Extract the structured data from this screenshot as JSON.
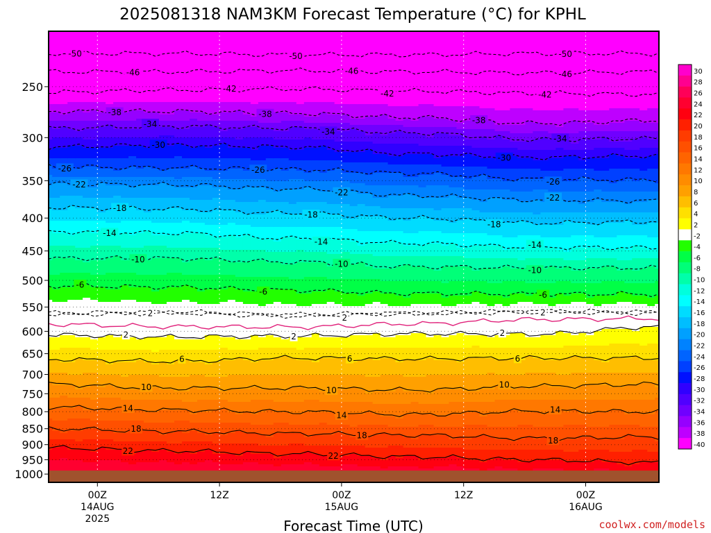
{
  "chart_data": {
    "type": "heatmap",
    "title": "2025081318 NAM3KM Forecast Temperature (°C) for KPHL",
    "xlabel": "Forecast Time (UTC)",
    "ylabel": "",
    "credit": "coolwx.com/models",
    "y_axis": {
      "unit": "hPa",
      "scale": "log",
      "range": [
        1030,
        205
      ],
      "ticks": [
        250,
        300,
        350,
        400,
        450,
        500,
        550,
        600,
        650,
        700,
        750,
        800,
        850,
        900,
        950,
        1000
      ]
    },
    "x_axis": {
      "range_hours": [
        -4.8,
        55.2
      ],
      "ticks": [
        {
          "h": 0,
          "lines": [
            "00Z",
            "14AUG",
            "2025"
          ]
        },
        {
          "h": 12,
          "lines": [
            "12Z"
          ]
        },
        {
          "h": 24,
          "lines": [
            "00Z",
            "15AUG"
          ]
        },
        {
          "h": 36,
          "lines": [
            "12Z"
          ]
        },
        {
          "h": 48,
          "lines": [
            "00Z",
            "16AUG"
          ]
        }
      ]
    },
    "grid": true,
    "colorbar": {
      "placement": "right",
      "levels": [
        30,
        28,
        26,
        24,
        22,
        20,
        18,
        16,
        14,
        12,
        10,
        8,
        6,
        4,
        2,
        -2,
        -4,
        -6,
        -8,
        -10,
        -12,
        -14,
        -16,
        -18,
        -20,
        -22,
        -24,
        -26,
        -28,
        -30,
        -32,
        -34,
        -36,
        -38,
        -40
      ],
      "colors": [
        "#ff00cc",
        "#ff0090",
        "#ff0058",
        "#ff0030",
        "#ff0010",
        "#ff2000",
        "#ff3c00",
        "#ff5000",
        "#ff6400",
        "#ff7800",
        "#ff8c00",
        "#ffa000",
        "#ffbe00",
        "#ffe000",
        "#ffff00",
        "#ffffff",
        "#22ff00",
        "#00ff46",
        "#00ff78",
        "#00ffaa",
        "#00ffdd",
        "#00ffff",
        "#00dcff",
        "#00beff",
        "#00a0ff",
        "#0082ff",
        "#0064ff",
        "#0040ff",
        "#0010ff",
        "#3000ff",
        "#5000ff",
        "#7000ff",
        "#9600ff",
        "#be00ff",
        "#ff00ff"
      ]
    },
    "contours": [
      {
        "value": -50,
        "label": "-50",
        "p": [
          222,
          222,
          223,
          223,
          222,
          222
        ],
        "labels_h": [
          -2.2,
          19.5,
          46
        ]
      },
      {
        "value": -46,
        "label": "-46",
        "p": [
          237,
          237,
          236,
          237,
          238,
          237
        ],
        "labels_h": [
          3.5,
          25,
          46
        ]
      },
      {
        "value": -42,
        "label": "-42",
        "p": [
          255,
          253,
          252,
          254,
          256,
          257
        ],
        "labels_h": [
          13,
          28.5,
          44
        ]
      },
      {
        "value": -38,
        "label": "-38",
        "p": [
          273,
          273,
          275,
          279,
          285,
          282
        ],
        "labels_h": [
          1.7,
          16.5,
          37.5
        ]
      },
      {
        "value": -34,
        "label": "-34",
        "p": [
          290,
          288,
          290,
          295,
          302,
          301
        ],
        "labels_h": [
          5.2,
          22.7,
          45.5
        ]
      },
      {
        "value": -30,
        "label": "-30",
        "p": [
          310,
          308,
          310,
          318,
          322,
          320
        ],
        "labels_h": [
          6,
          40
        ]
      },
      {
        "value": -26,
        "label": "-26",
        "p": [
          333,
          334,
          336,
          341,
          348,
          349
        ],
        "labels_h": [
          -3.2,
          15.8,
          44.8
        ]
      },
      {
        "value": -22,
        "label": "-22",
        "p": [
          354,
          355,
          360,
          369,
          375,
          376
        ],
        "labels_h": [
          -1.8,
          24,
          44.8
        ]
      },
      {
        "value": -18,
        "label": "-18",
        "p": [
          385,
          387,
          393,
          400,
          407,
          405
        ],
        "labels_h": [
          2.2,
          21,
          39
        ]
      },
      {
        "value": -14,
        "label": "-14",
        "p": [
          420,
          422,
          430,
          438,
          444,
          445
        ],
        "labels_h": [
          1.2,
          22,
          43
        ]
      },
      {
        "value": -10,
        "label": "-10",
        "p": [
          462,
          462,
          468,
          476,
          478,
          478
        ],
        "labels_h": [
          4,
          24,
          43
        ]
      },
      {
        "value": -6,
        "label": "-6",
        "p": [
          510,
          512,
          518,
          524,
          525,
          525
        ],
        "labels_h": [
          -1.7,
          16.3,
          43.8
        ]
      },
      {
        "value": -2,
        "label": "",
        "p": [
          562,
          560,
          565,
          562,
          558,
          560
        ],
        "labels_h": [],
        "dashed": true
      },
      {
        "value": 2,
        "label": "2",
        "p": [
          565,
          562,
          568,
          563,
          560,
          562
        ],
        "labels_h": [
          5.2,
          24.3,
          43.8
        ],
        "dashed": true
      },
      {
        "value": 0,
        "label": "",
        "p": [
          585,
          590,
          591,
          584,
          575,
          573
        ],
        "labels_h": [],
        "freezing": true
      },
      {
        "value": 2,
        "label": "2",
        "p": [
          608,
          612,
          610,
          605,
          606,
          590
        ],
        "labels_h": [
          2.8,
          19.3,
          39.8
        ]
      },
      {
        "value": 6,
        "label": "6",
        "p": [
          663,
          668,
          660,
          662,
          660,
          660
        ],
        "labels_h": [
          8.3,
          24.8,
          41.3
        ]
      },
      {
        "value": 10,
        "label": "10",
        "p": [
          725,
          735,
          735,
          740,
          730,
          725
        ],
        "labels_h": [
          4.8,
          23,
          40
        ]
      },
      {
        "value": 14,
        "label": "14",
        "p": [
          787,
          795,
          800,
          808,
          798,
          800
        ],
        "labels_h": [
          3,
          24,
          45
        ]
      },
      {
        "value": 18,
        "label": "18",
        "p": [
          850,
          858,
          865,
          870,
          880,
          875
        ],
        "labels_h": [
          3.8,
          26,
          44.8
        ]
      },
      {
        "value": 22,
        "label": "22",
        "p": [
          910,
          920,
          930,
          940,
          950,
          960
        ],
        "labels_h": [
          3,
          23.2
        ]
      }
    ]
  }
}
